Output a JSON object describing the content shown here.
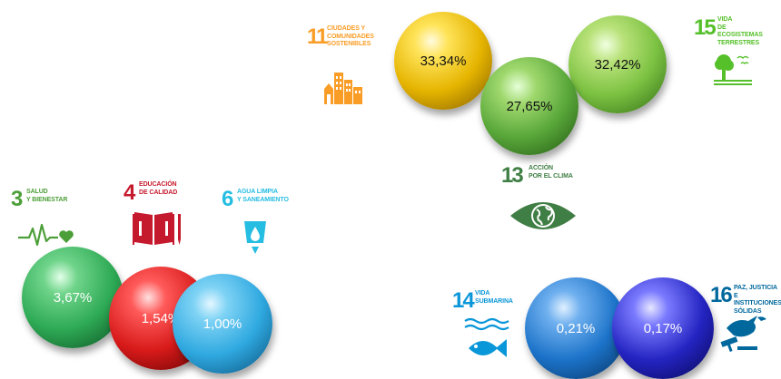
{
  "goals": [
    {
      "id": "g11",
      "number": "11",
      "label": "Ciudades y\ncomunidades\nsostenibles",
      "color": "#F99D26",
      "icon": "city-icon"
    },
    {
      "id": "g15",
      "number": "15",
      "label": "Vida\nde ecosistemas\nterrestres",
      "color": "#56C02B",
      "icon": "tree-icon"
    },
    {
      "id": "g13",
      "number": "13",
      "label": "Acción\npor el clima",
      "color": "#3F7E44",
      "icon": "eye-globe-icon"
    },
    {
      "id": "g3",
      "number": "3",
      "label": "Salud\ny bienestar",
      "color": "#4C9F38",
      "icon": "heartbeat-icon"
    },
    {
      "id": "g4",
      "number": "4",
      "label": "Educación\nde calidad",
      "color": "#C5192D",
      "icon": "book-icon"
    },
    {
      "id": "g6",
      "number": "6",
      "label": "Agua limpia\ny saneamiento",
      "color": "#26BDE2",
      "icon": "water-drop-icon"
    },
    {
      "id": "g14",
      "number": "14",
      "label": "Vida\nsubmarina",
      "color": "#0A97D9",
      "icon": "fish-icon"
    },
    {
      "id": "g16",
      "number": "16",
      "label": "Paz, justicia\ne instituciones\nsólidas",
      "color": "#00689D",
      "icon": "dove-gavel-icon"
    }
  ],
  "spheres": [
    {
      "id": "s11",
      "value": "33,34%",
      "color": "#e8b400"
    },
    {
      "id": "s13",
      "value": "27,65%",
      "color": "#5aa83a"
    },
    {
      "id": "s15",
      "value": "32,42%",
      "color": "#7cc242"
    },
    {
      "id": "s3",
      "value": "3,67%",
      "color": "#2eaa55"
    },
    {
      "id": "s4",
      "value": "1,54%",
      "color": "#d81a1a"
    },
    {
      "id": "s6",
      "value": "1,00%",
      "color": "#2fa9e0"
    },
    {
      "id": "s14",
      "value": "0,21%",
      "color": "#1c73c9"
    },
    {
      "id": "s16",
      "value": "0,17%",
      "color": "#2424c2"
    }
  ]
}
